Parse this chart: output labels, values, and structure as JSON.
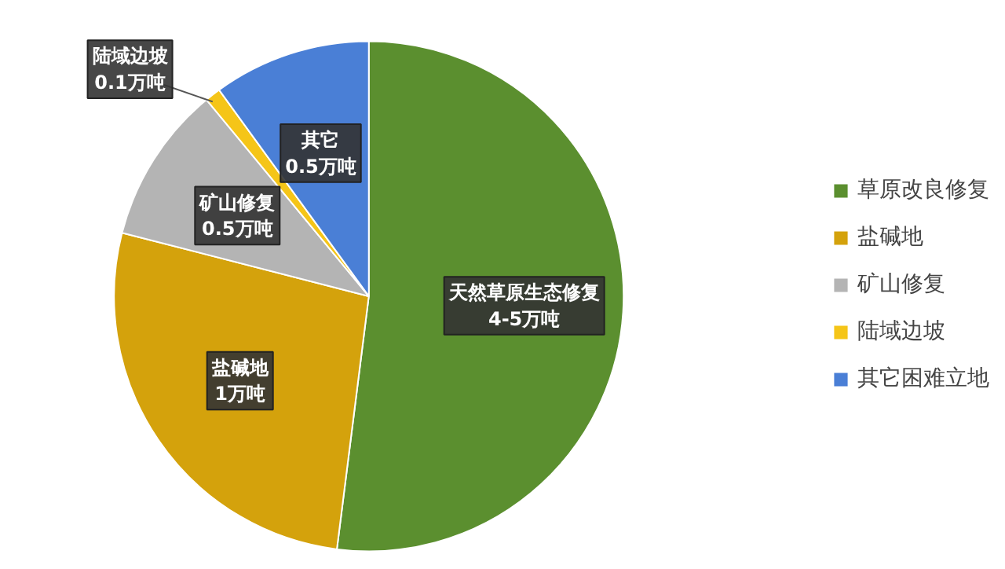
{
  "chart_data": {
    "type": "pie",
    "categories": [
      "草原改良修复",
      "盐碱地",
      "矿山修复",
      "陆域边坡",
      "其它困难立地"
    ],
    "values": [
      52,
      27,
      10,
      1,
      10
    ],
    "colors": [
      "#5b8f2f",
      "#d4a20c",
      "#b4b4b4",
      "#f5c518",
      "#4a7fd6"
    ],
    "value_labels": [
      "天然草原生态修复\n4-5万吨",
      "盐碱地\n1万吨",
      "矿山修复\n0.5万吨",
      "陆域边坡\n0.1万吨",
      "其它\n0.5万吨"
    ],
    "legend": "right"
  }
}
